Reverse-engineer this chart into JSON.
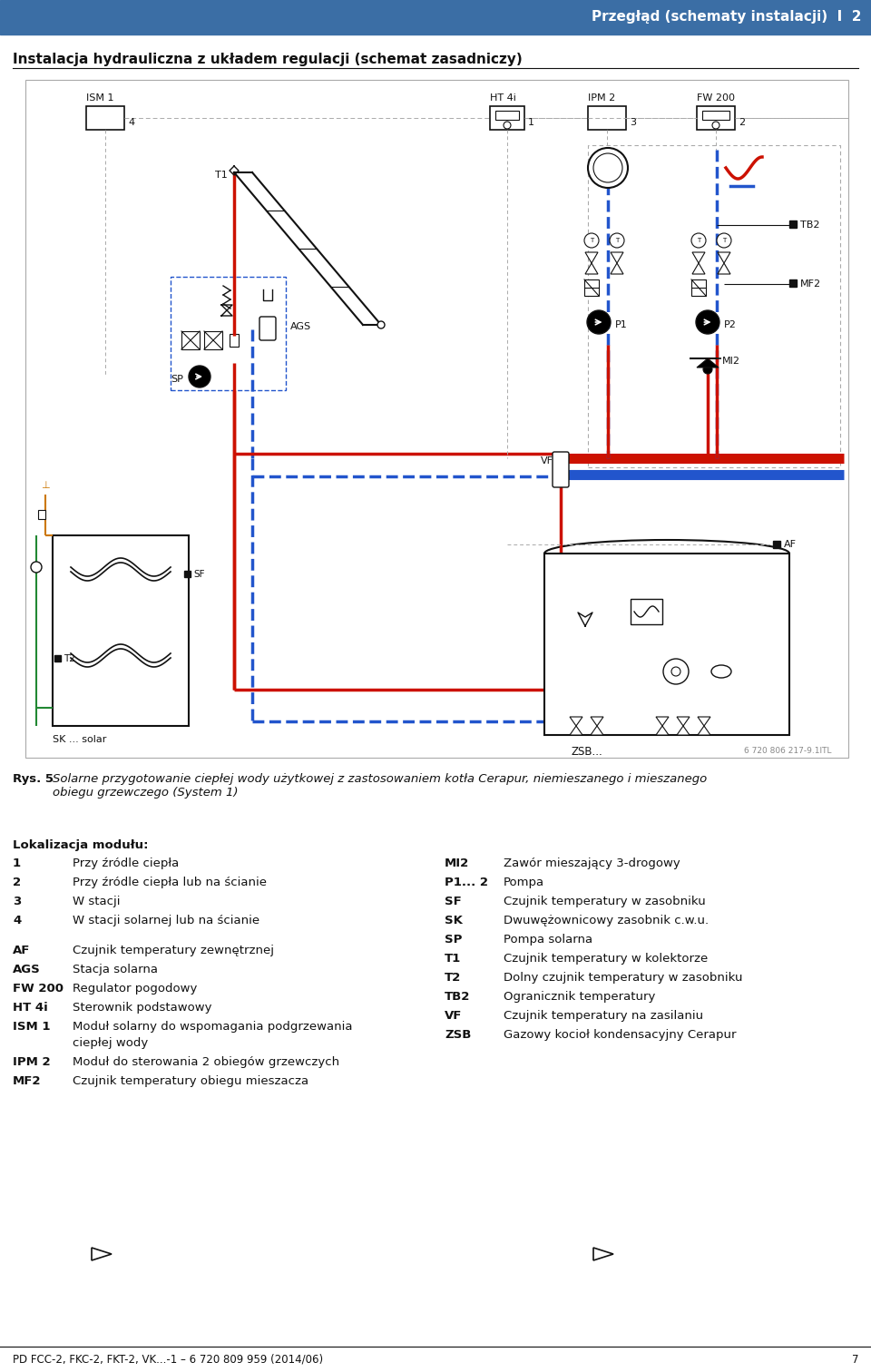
{
  "header_bg_color": "#3b6ea5",
  "header_text": "Przegłąd (schematy instalacji)  I  2",
  "header_text_color": "#ffffff",
  "page_bg": "#ffffff",
  "title_line": "Instalacja hydrauliczna z układem regulacji (schemat zasadniczy)",
  "caption_bold": "Rys. 5",
  "caption_text": "Solarne przygotowanie ciepłej wody użytkowej z zastosowaniem kotła Cerapur, niemieszanego i mieszanego\nobiegu grzewczego (System 1)",
  "location_header": "Lokalizacja modułu:",
  "location_items": [
    [
      "1",
      "Przy źródle ciepła"
    ],
    [
      "2",
      "Przy źródle ciepła lub na ścianie"
    ],
    [
      "3",
      "W stacji"
    ],
    [
      "4",
      "W stacji solarnej lub na ścianie"
    ]
  ],
  "location_items2": [
    [
      "AF",
      "Czujnik temperatury zewnętrznej"
    ],
    [
      "AGS",
      "Stacja solarna"
    ],
    [
      "FW 200",
      "Regulator pogodowy"
    ],
    [
      "HT 4i",
      "Sterownik podstawowy"
    ],
    [
      "ISM 1",
      "Moduł solarny do wspomagania podgrzewania\nciepłej wody"
    ],
    [
      "IPM 2",
      "Moduł do sterowania 2 obiegów grzewczych"
    ],
    [
      "MF2",
      "Czujnik temperatury obiegu mieszacza"
    ]
  ],
  "right_legend": [
    [
      "MI2",
      "Zawór mieszający 3-drogowy"
    ],
    [
      "P1... 2",
      "Pompa"
    ],
    [
      "SF",
      "Czujnik temperatury w zasobniku"
    ],
    [
      "SK",
      "Dwuwężownicowy zasobnik c.w.u."
    ],
    [
      "SP",
      "Pompa solarna"
    ],
    [
      "T1",
      "Czujnik temperatury w kolektorze"
    ],
    [
      "T2",
      "Dolny czujnik temperatury w zasobniku"
    ],
    [
      "TB2",
      "Ogranicznik temperatury"
    ],
    [
      "VF",
      "Czujnik temperatury na zasilaniu"
    ],
    [
      "ZSB",
      "Gazowy kocioł kondensacyjny Cerapur"
    ]
  ],
  "footer_text": "PD FCC-2, FKC-2, FKT-2, VK...-1 – 6 720 809 959 (2014/06)",
  "footer_page": "7",
  "small_note": "6 720 806 217-9.1ITL"
}
